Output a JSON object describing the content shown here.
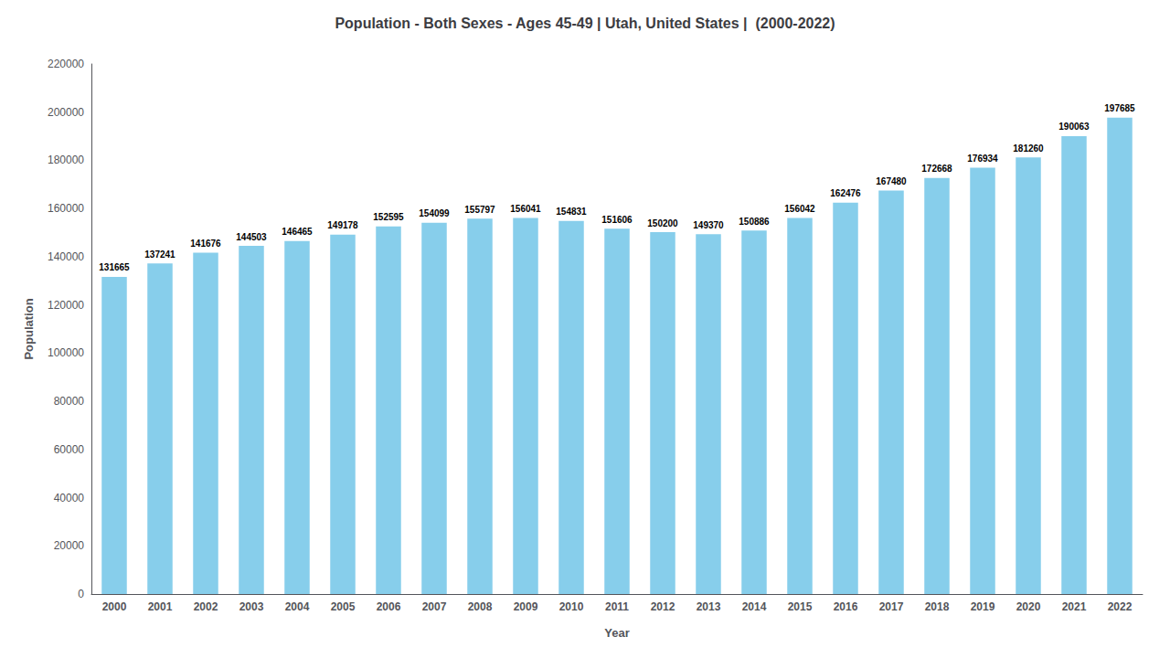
{
  "chart_data": {
    "type": "bar",
    "title": "Population - Both Sexes - Ages 45-49 | Utah, United States |  (2000-2022)",
    "xlabel": "Year",
    "ylabel": "Population",
    "categories": [
      "2000",
      "2001",
      "2002",
      "2003",
      "2004",
      "2005",
      "2006",
      "2007",
      "2008",
      "2009",
      "2010",
      "2011",
      "2012",
      "2013",
      "2014",
      "2015",
      "2016",
      "2017",
      "2018",
      "2019",
      "2020",
      "2021",
      "2022"
    ],
    "values": [
      131665,
      137241,
      141676,
      144503,
      146465,
      149178,
      152595,
      154099,
      155797,
      156041,
      154831,
      151606,
      150200,
      149370,
      150886,
      156042,
      162476,
      167480,
      172668,
      176934,
      181260,
      190063,
      197685
    ],
    "color": "#87CEEB",
    "ylim": [
      0,
      220000
    ],
    "yticks": [
      0,
      20000,
      40000,
      60000,
      80000,
      100000,
      120000,
      140000,
      160000,
      180000,
      200000,
      220000
    ],
    "data_labels": true,
    "grid": false
  }
}
